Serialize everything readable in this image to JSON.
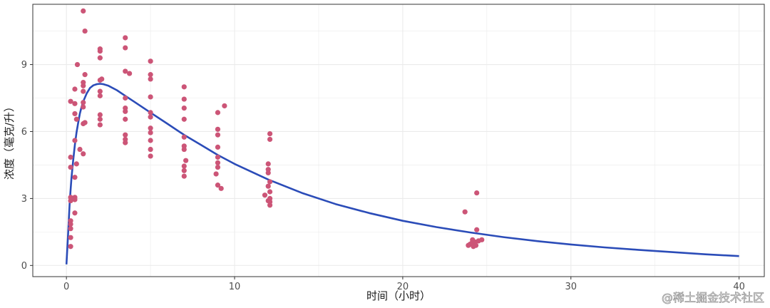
{
  "chart_data": {
    "type": "scatter",
    "title": "",
    "xlabel": "时间（小时）",
    "ylabel": "浓度（毫克/升）",
    "xlim": [
      -2,
      41.5
    ],
    "ylim": [
      -0.5,
      11.7
    ],
    "x_ticks": [
      0,
      10,
      20,
      30,
      40
    ],
    "y_ticks": [
      0,
      3,
      6,
      9
    ],
    "x_tick_labels": [
      "0",
      "10",
      "20",
      "30",
      "40"
    ],
    "y_tick_labels": [
      "0",
      "3",
      "6",
      "9"
    ],
    "grid": true,
    "legend": "none",
    "colors": {
      "points": "#cc5577",
      "curve": "#2b4cb8",
      "grid": "#ebebeb",
      "panel_border": "#333333"
    },
    "series": [
      {
        "kind": "points",
        "points": [
          [
            0.25,
            0.85
          ],
          [
            0.25,
            1.25
          ],
          [
            0.25,
            1.65
          ],
          [
            0.25,
            1.85
          ],
          [
            0.25,
            2.0
          ],
          [
            0.25,
            2.9
          ],
          [
            0.25,
            3.05
          ],
          [
            0.25,
            4.4
          ],
          [
            0.25,
            4.85
          ],
          [
            0.25,
            7.35
          ],
          [
            0.5,
            2.35
          ],
          [
            0.5,
            2.95
          ],
          [
            0.5,
            3.05
          ],
          [
            0.5,
            3.95
          ],
          [
            0.5,
            5.6
          ],
          [
            0.5,
            6.8
          ],
          [
            0.5,
            7.25
          ],
          [
            0.5,
            7.9
          ],
          [
            0.6,
            4.55
          ],
          [
            0.6,
            6.55
          ],
          [
            0.65,
            9.0
          ],
          [
            0.8,
            5.2
          ],
          [
            1.0,
            5.0
          ],
          [
            1.0,
            6.35
          ],
          [
            1.0,
            7.1
          ],
          [
            1.0,
            7.3
          ],
          [
            1.0,
            7.8
          ],
          [
            1.0,
            8.05
          ],
          [
            1.0,
            8.2
          ],
          [
            1.0,
            11.4
          ],
          [
            1.1,
            6.4
          ],
          [
            1.1,
            8.55
          ],
          [
            1.1,
            10.5
          ],
          [
            2.0,
            6.3
          ],
          [
            2.0,
            6.55
          ],
          [
            2.0,
            6.75
          ],
          [
            2.0,
            7.6
          ],
          [
            2.0,
            7.8
          ],
          [
            2.0,
            8.3
          ],
          [
            2.0,
            9.3
          ],
          [
            2.0,
            9.6
          ],
          [
            2.0,
            9.7
          ],
          [
            2.1,
            8.35
          ],
          [
            3.5,
            5.5
          ],
          [
            3.5,
            5.65
          ],
          [
            3.5,
            5.85
          ],
          [
            3.5,
            6.55
          ],
          [
            3.5,
            6.9
          ],
          [
            3.5,
            7.05
          ],
          [
            3.5,
            7.5
          ],
          [
            3.5,
            8.7
          ],
          [
            3.5,
            9.75
          ],
          [
            3.5,
            10.2
          ],
          [
            3.75,
            8.6
          ],
          [
            5.0,
            4.9
          ],
          [
            5.0,
            5.2
          ],
          [
            5.0,
            5.6
          ],
          [
            5.0,
            5.95
          ],
          [
            5.0,
            6.15
          ],
          [
            5.0,
            6.65
          ],
          [
            5.0,
            6.85
          ],
          [
            5.0,
            7.55
          ],
          [
            5.0,
            8.35
          ],
          [
            5.0,
            8.55
          ],
          [
            5.0,
            9.15
          ],
          [
            7.0,
            4.0
          ],
          [
            7.0,
            4.25
          ],
          [
            7.0,
            4.45
          ],
          [
            7.0,
            5.2
          ],
          [
            7.0,
            5.35
          ],
          [
            7.0,
            5.75
          ],
          [
            7.0,
            6.55
          ],
          [
            7.0,
            7.05
          ],
          [
            7.0,
            7.45
          ],
          [
            7.0,
            8.0
          ],
          [
            7.1,
            4.7
          ],
          [
            8.9,
            4.1
          ],
          [
            9.0,
            3.6
          ],
          [
            9.0,
            4.4
          ],
          [
            9.0,
            4.6
          ],
          [
            9.0,
            4.85
          ],
          [
            9.0,
            5.3
          ],
          [
            9.0,
            5.85
          ],
          [
            9.0,
            6.1
          ],
          [
            9.0,
            6.85
          ],
          [
            9.2,
            3.45
          ],
          [
            9.4,
            7.15
          ],
          [
            11.8,
            3.15
          ],
          [
            12.0,
            2.9
          ],
          [
            12.0,
            3.55
          ],
          [
            12.0,
            4.15
          ],
          [
            12.0,
            4.3
          ],
          [
            12.0,
            4.55
          ],
          [
            12.1,
            2.7
          ],
          [
            12.1,
            2.85
          ],
          [
            12.1,
            3.0
          ],
          [
            12.1,
            3.3
          ],
          [
            12.1,
            3.75
          ],
          [
            12.1,
            5.65
          ],
          [
            12.1,
            5.9
          ],
          [
            23.7,
            2.4
          ],
          [
            23.9,
            0.9
          ],
          [
            24.0,
            0.95
          ],
          [
            24.1,
            1.0
          ],
          [
            24.15,
            1.15
          ],
          [
            24.2,
            0.85
          ],
          [
            24.3,
            1.05
          ],
          [
            24.35,
            0.9
          ],
          [
            24.4,
            1.6
          ],
          [
            24.4,
            3.25
          ],
          [
            24.5,
            1.1
          ],
          [
            24.7,
            1.15
          ]
        ]
      },
      {
        "kind": "line",
        "points": [
          [
            0,
            0.05
          ],
          [
            0.1,
            1.4
          ],
          [
            0.2,
            2.9
          ],
          [
            0.3,
            3.9
          ],
          [
            0.4,
            4.7
          ],
          [
            0.5,
            5.4
          ],
          [
            0.6,
            5.95
          ],
          [
            0.7,
            6.4
          ],
          [
            0.8,
            6.8
          ],
          [
            0.9,
            7.1
          ],
          [
            1.0,
            7.35
          ],
          [
            1.2,
            7.7
          ],
          [
            1.4,
            7.95
          ],
          [
            1.6,
            8.07
          ],
          [
            1.8,
            8.12
          ],
          [
            2.0,
            8.14
          ],
          [
            2.2,
            8.12
          ],
          [
            2.5,
            8.05
          ],
          [
            3.0,
            7.85
          ],
          [
            3.5,
            7.6
          ],
          [
            4.0,
            7.35
          ],
          [
            5.0,
            6.85
          ],
          [
            6.0,
            6.35
          ],
          [
            7.0,
            5.85
          ],
          [
            8.0,
            5.4
          ],
          [
            9.0,
            4.95
          ],
          [
            10.0,
            4.55
          ],
          [
            12.0,
            3.85
          ],
          [
            14.0,
            3.25
          ],
          [
            16.0,
            2.75
          ],
          [
            18.0,
            2.35
          ],
          [
            20.0,
            2.0
          ],
          [
            22.0,
            1.72
          ],
          [
            24.0,
            1.48
          ],
          [
            26.0,
            1.27
          ],
          [
            28.0,
            1.09
          ],
          [
            30.0,
            0.94
          ],
          [
            32.0,
            0.81
          ],
          [
            34.0,
            0.7
          ],
          [
            36.0,
            0.6
          ],
          [
            38.0,
            0.5
          ],
          [
            40.0,
            0.42
          ]
        ]
      }
    ]
  },
  "watermark": {
    "text": "@稀土掘金技术社区"
  }
}
